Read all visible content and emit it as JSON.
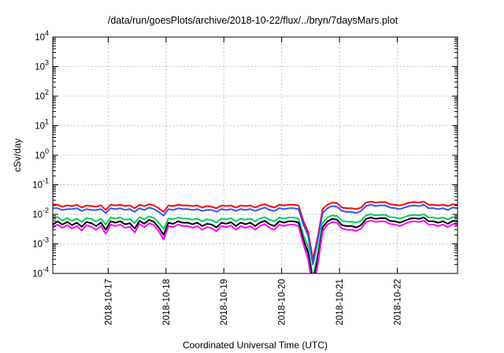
{
  "chart_data": {
    "type": "line",
    "title": "/data/run/goesPlots/archive/2018-10-22/flux/../bryn/7daysMars.plot",
    "xlabel": "Coordinated Universal Time (UTC)",
    "ylabel": "cSv/day",
    "yscale": "log",
    "ylim": [
      0.0001,
      10000
    ],
    "xlim": [
      "2018-10-16T01:00",
      "2018-10-23T01:00"
    ],
    "x_ticks": [
      "2018-10-17",
      "2018-10-18",
      "2018-10-19",
      "2018-10-20",
      "2018-10-21",
      "2018-10-22"
    ],
    "y_ticks": [
      {
        "base": "10",
        "exp": "-4",
        "value": 0.0001
      },
      {
        "base": "10",
        "exp": "-3",
        "value": 0.001
      },
      {
        "base": "10",
        "exp": "-2",
        "value": 0.01
      },
      {
        "base": "10",
        "exp": "-1",
        "value": 0.1
      },
      {
        "base": "10",
        "exp": "0",
        "value": 1
      },
      {
        "base": "10",
        "exp": "1",
        "value": 10
      },
      {
        "base": "10",
        "exp": "2",
        "value": 100
      },
      {
        "base": "10",
        "exp": "3",
        "value": 1000
      },
      {
        "base": "10",
        "exp": "4",
        "value": 10000
      }
    ],
    "grid": true,
    "legend": "none",
    "x": [
      "2018-10-16T01:00",
      "2018-10-16T03:00",
      "2018-10-16T05:00",
      "2018-10-16T07:00",
      "2018-10-16T09:00",
      "2018-10-16T11:00",
      "2018-10-16T13:00",
      "2018-10-16T15:00",
      "2018-10-16T17:00",
      "2018-10-16T19:00",
      "2018-10-16T21:00",
      "2018-10-16T23:00",
      "2018-10-17T01:00",
      "2018-10-17T03:00",
      "2018-10-17T05:00",
      "2018-10-17T07:00",
      "2018-10-17T09:00",
      "2018-10-17T11:00",
      "2018-10-17T13:00",
      "2018-10-17T15:00",
      "2018-10-17T17:00",
      "2018-10-17T19:00",
      "2018-10-17T21:00",
      "2018-10-17T23:00",
      "2018-10-18T01:00",
      "2018-10-18T03:00",
      "2018-10-18T05:00",
      "2018-10-18T07:00",
      "2018-10-18T09:00",
      "2018-10-18T11:00",
      "2018-10-18T13:00",
      "2018-10-18T15:00",
      "2018-10-18T17:00",
      "2018-10-18T19:00",
      "2018-10-18T21:00",
      "2018-10-18T23:00",
      "2018-10-19T01:00",
      "2018-10-19T03:00",
      "2018-10-19T05:00",
      "2018-10-19T07:00",
      "2018-10-19T09:00",
      "2018-10-19T11:00",
      "2018-10-19T13:00",
      "2018-10-19T15:00",
      "2018-10-19T17:00",
      "2018-10-19T19:00",
      "2018-10-19T21:00",
      "2018-10-19T23:00",
      "2018-10-20T01:00",
      "2018-10-20T03:00",
      "2018-10-20T05:00",
      "2018-10-20T07:00",
      "2018-10-20T09:00",
      "2018-10-20T11:00",
      "2018-10-20T13:00",
      "2018-10-20T15:00",
      "2018-10-20T17:00",
      "2018-10-20T19:00",
      "2018-10-20T21:00",
      "2018-10-20T23:00",
      "2018-10-21T01:00",
      "2018-10-21T03:00",
      "2018-10-21T05:00",
      "2018-10-21T07:00",
      "2018-10-21T09:00",
      "2018-10-21T11:00",
      "2018-10-21T13:00",
      "2018-10-21T15:00",
      "2018-10-21T17:00",
      "2018-10-21T19:00",
      "2018-10-21T21:00",
      "2018-10-21T23:00",
      "2018-10-22T01:00",
      "2018-10-22T03:00",
      "2018-10-22T05:00",
      "2018-10-22T07:00",
      "2018-10-22T09:00",
      "2018-10-22T11:00",
      "2018-10-22T13:00",
      "2018-10-22T15:00",
      "2018-10-22T17:00",
      "2018-10-22T19:00",
      "2018-10-22T21:00",
      "2018-10-22T23:00",
      "2018-10-23T01:00"
    ],
    "series": [
      {
        "color": "#ff0000",
        "values": [
          0.022,
          0.021,
          0.018,
          0.02,
          0.019,
          0.021,
          0.017,
          0.02,
          0.019,
          0.018,
          0.02,
          0.014,
          0.021,
          0.02,
          0.021,
          0.019,
          0.02,
          0.016,
          0.021,
          0.019,
          0.022,
          0.02,
          0.016,
          0.012,
          0.02,
          0.019,
          0.021,
          0.02,
          0.02,
          0.019,
          0.02,
          0.017,
          0.019,
          0.018,
          0.016,
          0.02,
          0.019,
          0.02,
          0.017,
          0.02,
          0.019,
          0.02,
          0.017,
          0.02,
          0.022,
          0.019,
          0.017,
          0.021,
          0.02,
          0.021,
          0.021,
          0.02,
          0.006,
          0.0025,
          0.0003,
          0.0017,
          0.015,
          0.021,
          0.025,
          0.024,
          0.017,
          0.016,
          0.016,
          0.015,
          0.017,
          0.025,
          0.027,
          0.025,
          0.026,
          0.026,
          0.022,
          0.021,
          0.02,
          0.022,
          0.025,
          0.026,
          0.025,
          0.027,
          0.021,
          0.021,
          0.02,
          0.021,
          0.019,
          0.022,
          0.021
        ]
      },
      {
        "color": "#3355ff",
        "values": [
          0.016,
          0.016,
          0.014,
          0.015,
          0.015,
          0.016,
          0.013,
          0.015,
          0.014,
          0.014,
          0.015,
          0.011,
          0.016,
          0.015,
          0.016,
          0.014,
          0.015,
          0.012,
          0.016,
          0.014,
          0.017,
          0.015,
          0.012,
          0.009,
          0.015,
          0.014,
          0.016,
          0.015,
          0.015,
          0.014,
          0.015,
          0.013,
          0.014,
          0.014,
          0.012,
          0.015,
          0.014,
          0.015,
          0.013,
          0.015,
          0.014,
          0.015,
          0.013,
          0.015,
          0.017,
          0.014,
          0.013,
          0.016,
          0.015,
          0.016,
          0.016,
          0.015,
          0.0045,
          0.0019,
          0.0002,
          0.0013,
          0.011,
          0.016,
          0.019,
          0.018,
          0.013,
          0.012,
          0.012,
          0.011,
          0.013,
          0.019,
          0.021,
          0.019,
          0.02,
          0.02,
          0.017,
          0.016,
          0.015,
          0.017,
          0.019,
          0.02,
          0.019,
          0.021,
          0.016,
          0.016,
          0.015,
          0.016,
          0.014,
          0.017,
          0.016
        ]
      },
      {
        "color": "#00cc66",
        "values": [
          0.0075,
          0.008,
          0.0062,
          0.0075,
          0.006,
          0.0072,
          0.0055,
          0.0075,
          0.007,
          0.0058,
          0.0072,
          0.0045,
          0.0078,
          0.0072,
          0.0078,
          0.0065,
          0.007,
          0.005,
          0.008,
          0.0068,
          0.0085,
          0.0075,
          0.0052,
          0.0032,
          0.0072,
          0.0068,
          0.0078,
          0.0072,
          0.0072,
          0.0066,
          0.0072,
          0.0058,
          0.0068,
          0.0064,
          0.0052,
          0.0072,
          0.0068,
          0.0074,
          0.0058,
          0.0072,
          0.0066,
          0.0072,
          0.0058,
          0.0072,
          0.008,
          0.0066,
          0.0058,
          0.0078,
          0.0072,
          0.0078,
          0.0078,
          0.0072,
          0.002,
          0.0008,
          7e-05,
          0.0005,
          0.005,
          0.0078,
          0.0092,
          0.0088,
          0.006,
          0.0056,
          0.0056,
          0.0052,
          0.006,
          0.0092,
          0.01,
          0.0092,
          0.0096,
          0.0096,
          0.008,
          0.0078,
          0.0072,
          0.008,
          0.0092,
          0.0096,
          0.0092,
          0.01,
          0.0078,
          0.0078,
          0.0072,
          0.0078,
          0.0068,
          0.008,
          0.0078
        ]
      },
      {
        "color": "#000000",
        "values": [
          0.0045,
          0.0058,
          0.0045,
          0.0055,
          0.0043,
          0.0052,
          0.0038,
          0.0055,
          0.005,
          0.004,
          0.0052,
          0.003,
          0.0058,
          0.0052,
          0.0058,
          0.0046,
          0.005,
          0.0033,
          0.006,
          0.0048,
          0.0065,
          0.0055,
          0.0036,
          0.002,
          0.0052,
          0.0048,
          0.0058,
          0.0052,
          0.0052,
          0.0046,
          0.0052,
          0.004,
          0.0048,
          0.0045,
          0.0036,
          0.0052,
          0.0048,
          0.0054,
          0.004,
          0.0052,
          0.0046,
          0.0052,
          0.004,
          0.0052,
          0.006,
          0.0046,
          0.004,
          0.0058,
          0.0052,
          0.0058,
          0.0058,
          0.0052,
          0.0014,
          0.0005,
          5e-05,
          0.0003,
          0.0036,
          0.0058,
          0.007,
          0.0066,
          0.0043,
          0.004,
          0.004,
          0.0036,
          0.0043,
          0.007,
          0.0078,
          0.007,
          0.0074,
          0.0074,
          0.006,
          0.0058,
          0.0052,
          0.006,
          0.007,
          0.0074,
          0.007,
          0.0078,
          0.0058,
          0.0058,
          0.0052,
          0.0058,
          0.0048,
          0.006,
          0.0058
        ]
      },
      {
        "color": "#ff00ff",
        "values": [
          0.0035,
          0.0045,
          0.0035,
          0.0043,
          0.0033,
          0.004,
          0.0028,
          0.0043,
          0.0038,
          0.003,
          0.004,
          0.0022,
          0.0045,
          0.004,
          0.0045,
          0.0035,
          0.0038,
          0.0024,
          0.0047,
          0.0037,
          0.005,
          0.0043,
          0.0027,
          0.0014,
          0.004,
          0.0037,
          0.0045,
          0.004,
          0.004,
          0.0035,
          0.004,
          0.003,
          0.0037,
          0.0034,
          0.0027,
          0.004,
          0.0037,
          0.0042,
          0.003,
          0.004,
          0.0035,
          0.004,
          0.003,
          0.004,
          0.0047,
          0.0035,
          0.003,
          0.0045,
          0.004,
          0.0045,
          0.0045,
          0.004,
          0.001,
          0.0003,
          3e-05,
          0.0002,
          0.0027,
          0.0045,
          0.0055,
          0.0052,
          0.0033,
          0.003,
          0.003,
          0.0027,
          0.0033,
          0.0055,
          0.0062,
          0.0055,
          0.0058,
          0.0058,
          0.0047,
          0.0045,
          0.004,
          0.0047,
          0.0055,
          0.0058,
          0.0055,
          0.0062,
          0.0045,
          0.0045,
          0.004,
          0.0045,
          0.0037,
          0.0047,
          0.0045
        ]
      }
    ]
  }
}
